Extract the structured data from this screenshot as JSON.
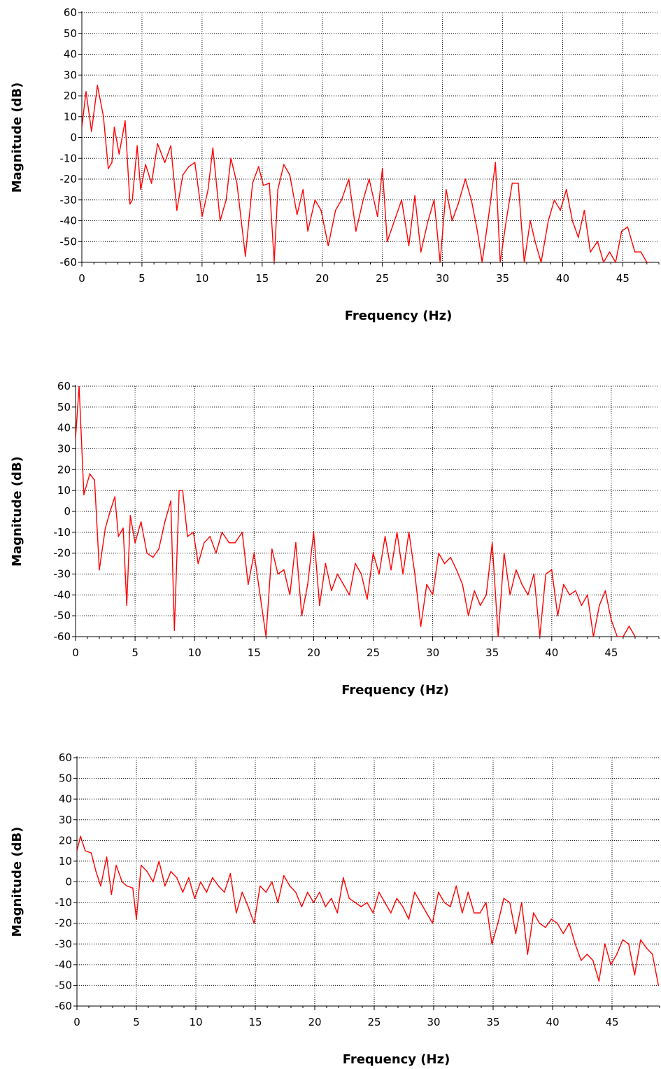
{
  "chart_data": [
    {
      "type": "line",
      "xlabel": "Frequency (Hz)",
      "ylabel": "Magnitude (dB)",
      "xlim": [
        0,
        48
      ],
      "ylim": [
        -60,
        60
      ],
      "xticks": [
        0,
        5,
        10,
        15,
        20,
        25,
        30,
        35,
        40,
        45
      ],
      "yticks": [
        60,
        50,
        40,
        30,
        20,
        10,
        0,
        -10,
        -20,
        -30,
        -40,
        -50,
        -60
      ],
      "grid": true,
      "line_color": "#ff0000",
      "series": [
        {
          "x": [
            0,
            0.35,
            0.8,
            1.3,
            1.8,
            2.2,
            2.5,
            2.7,
            3.1,
            3.6,
            4.0,
            4.2,
            4.6,
            4.9,
            5.3,
            5.8,
            6.3,
            6.9,
            7.4,
            7.9,
            8.4,
            8.9,
            9.4,
            10.0,
            10.5,
            10.9,
            11.5,
            12.0,
            12.4,
            12.9,
            13.6,
            14.2,
            14.7,
            15.1,
            15.6,
            16.0,
            16.3,
            16.8,
            17.3,
            17.9,
            18.4,
            18.8,
            19.4,
            19.9,
            20.5,
            21.1,
            21.6,
            22.2,
            22.8,
            23.4,
            23.9,
            24.6,
            25.0,
            25.4,
            26.0,
            26.6,
            27.2,
            27.7,
            28.2,
            28.8,
            29.3,
            29.8,
            30.3,
            30.8,
            31.3,
            31.9,
            32.4,
            32.9,
            33.3,
            33.9,
            34.4,
            34.8,
            35.3,
            35.8,
            36.3,
            36.8,
            37.3,
            37.7,
            38.2,
            38.8,
            39.3,
            39.8,
            40.3,
            40.8,
            41.3,
            41.8,
            42.3,
            42.9,
            43.4,
            43.9,
            44.4,
            44.9,
            45.4,
            46.0,
            46.5,
            47.0,
            47.3
          ],
          "y": [
            5,
            22,
            3,
            25,
            10,
            -15,
            -12,
            5,
            -8,
            8,
            -32,
            -30,
            -4,
            -25,
            -13,
            -22,
            -3,
            -12,
            -4,
            -35,
            -18,
            -14,
            -12,
            -38,
            -25,
            -5,
            -40,
            -30,
            -10,
            -22,
            -57,
            -22,
            -14,
            -23,
            -22,
            -60,
            -25,
            -13,
            -18,
            -37,
            -25,
            -45,
            -30,
            -35,
            -52,
            -35,
            -30,
            -20,
            -45,
            -30,
            -20,
            -38,
            -15,
            -50,
            -40,
            -30,
            -52,
            -28,
            -55,
            -40,
            -30,
            -60,
            -25,
            -40,
            -32,
            -20,
            -30,
            -45,
            -60,
            -35,
            -12,
            -60,
            -40,
            -22,
            -22,
            -60,
            -40,
            -50,
            -60,
            -40,
            -30,
            -35,
            -25,
            -40,
            -48,
            -35,
            -55,
            -50,
            -60,
            -55,
            -60,
            -45,
            -43,
            -55,
            -55,
            -60,
            -60
          ]
        }
      ]
    },
    {
      "type": "line",
      "xlabel": "Frequency (Hz)",
      "ylabel": "Magnitude (dB)",
      "xlim": [
        0,
        49
      ],
      "ylim": [
        -60,
        60
      ],
      "xticks": [
        0,
        5,
        10,
        15,
        20,
        25,
        30,
        35,
        40,
        45
      ],
      "yticks": [
        60,
        50,
        40,
        30,
        20,
        10,
        0,
        -10,
        -20,
        -30,
        -40,
        -50,
        -60
      ],
      "grid": true,
      "line_color": "#ff0000",
      "series": [
        {
          "x": [
            0,
            0.3,
            0.7,
            1.2,
            1.6,
            2.0,
            2.5,
            2.9,
            3.3,
            3.6,
            4.0,
            4.3,
            4.6,
            5.0,
            5.5,
            6.0,
            6.5,
            7.0,
            7.5,
            8.0,
            8.3,
            8.7,
            9.0,
            9.4,
            9.9,
            10.3,
            10.8,
            11.3,
            11.8,
            12.3,
            12.9,
            13.4,
            14.0,
            14.5,
            15.0,
            15.5,
            16.0,
            16.5,
            17.0,
            17.5,
            18.0,
            18.5,
            19.0,
            19.5,
            20.0,
            20.5,
            21.0,
            21.5,
            22.0,
            22.5,
            23.0,
            23.5,
            24.0,
            24.5,
            25.0,
            25.5,
            26.0,
            26.5,
            27.0,
            27.5,
            28.0,
            28.5,
            29.0,
            29.5,
            30.0,
            30.5,
            31.0,
            31.5,
            32.0,
            32.5,
            33.0,
            33.5,
            34.0,
            34.5,
            35.0,
            35.5,
            36.0,
            36.5,
            37.0,
            37.5,
            38.0,
            38.5,
            39.0,
            39.5,
            40.0,
            40.5,
            41.0,
            41.5,
            42.0,
            42.5,
            43.0,
            43.5,
            44.0,
            44.5,
            45.0,
            45.5,
            46.0,
            46.5,
            47.0
          ],
          "y": [
            35,
            60,
            8,
            18,
            15,
            -28,
            -8,
            0,
            7,
            -12,
            -8,
            -45,
            -2,
            -15,
            -5,
            -20,
            -22,
            -18,
            -5,
            5,
            -57,
            10,
            10,
            -12,
            -10,
            -25,
            -15,
            -12,
            -20,
            -10,
            -15,
            -15,
            -10,
            -35,
            -20,
            -40,
            -60,
            -18,
            -30,
            -28,
            -40,
            -15,
            -50,
            -35,
            -10,
            -45,
            -25,
            -38,
            -30,
            -35,
            -40,
            -25,
            -30,
            -42,
            -20,
            -30,
            -12,
            -28,
            -10,
            -30,
            -10,
            -30,
            -55,
            -35,
            -40,
            -20,
            -25,
            -22,
            -28,
            -35,
            -50,
            -38,
            -45,
            -40,
            -15,
            -60,
            -20,
            -40,
            -28,
            -35,
            -40,
            -30,
            -60,
            -30,
            -28,
            -50,
            -35,
            -40,
            -38,
            -45,
            -40,
            -60,
            -45,
            -38,
            -52,
            -60,
            -60,
            -55,
            -60
          ]
        }
      ]
    },
    {
      "type": "line",
      "xlabel": "Frequency (Hz)",
      "ylabel": "Magnitude (dB)",
      "xlim": [
        0,
        49
      ],
      "ylim": [
        -60,
        60
      ],
      "xticks": [
        0,
        5,
        10,
        15,
        20,
        25,
        30,
        35,
        40,
        45
      ],
      "yticks": [
        60,
        50,
        40,
        30,
        20,
        10,
        0,
        -10,
        -20,
        -30,
        -40,
        -50,
        -60
      ],
      "grid": true,
      "line_color": "#ff0000",
      "series": [
        {
          "x": [
            0,
            0.3,
            0.7,
            1.2,
            1.6,
            2.0,
            2.5,
            2.9,
            3.3,
            3.8,
            4.2,
            4.7,
            5.0,
            5.4,
            5.9,
            6.4,
            6.9,
            7.4,
            7.9,
            8.4,
            8.9,
            9.4,
            9.9,
            10.4,
            10.9,
            11.4,
            11.9,
            12.4,
            12.9,
            13.4,
            13.9,
            14.4,
            14.9,
            15.4,
            15.9,
            16.4,
            16.9,
            17.4,
            17.9,
            18.4,
            18.9,
            19.4,
            19.9,
            20.4,
            20.9,
            21.4,
            21.9,
            22.4,
            22.9,
            23.4,
            23.9,
            24.4,
            24.9,
            25.4,
            25.9,
            26.4,
            26.9,
            27.4,
            27.9,
            28.4,
            28.9,
            29.4,
            29.9,
            30.4,
            30.9,
            31.4,
            31.9,
            32.4,
            32.9,
            33.4,
            33.9,
            34.4,
            34.9,
            35.4,
            35.9,
            36.4,
            36.9,
            37.4,
            37.9,
            38.4,
            38.9,
            39.4,
            39.9,
            40.4,
            40.9,
            41.4,
            41.9,
            42.4,
            42.9,
            43.4,
            43.9,
            44.4,
            44.9,
            45.4,
            45.9,
            46.4,
            46.9,
            47.4,
            47.9,
            48.4,
            48.9
          ],
          "y": [
            15,
            22,
            15,
            14,
            5,
            -2,
            12,
            -6,
            8,
            0,
            -2,
            -3,
            -18,
            8,
            5,
            0,
            10,
            -2,
            5,
            2,
            -5,
            2,
            -8,
            0,
            -5,
            2,
            -2,
            -5,
            4,
            -15,
            -5,
            -12,
            -20,
            -2,
            -5,
            0,
            -10,
            3,
            -2,
            -5,
            -12,
            -5,
            -10,
            -5,
            -12,
            -8,
            -15,
            2,
            -8,
            -10,
            -12,
            -10,
            -15,
            -5,
            -10,
            -15,
            -8,
            -12,
            -18,
            -5,
            -10,
            -15,
            -20,
            -5,
            -10,
            -12,
            -2,
            -15,
            -5,
            -15,
            -15,
            -10,
            -30,
            -20,
            -8,
            -10,
            -25,
            -10,
            -35,
            -15,
            -20,
            -22,
            -18,
            -20,
            -25,
            -20,
            -30,
            -38,
            -35,
            -38,
            -48,
            -30,
            -40,
            -35,
            -28,
            -30,
            -45,
            -28,
            -32,
            -35,
            -50
          ]
        }
      ]
    }
  ]
}
